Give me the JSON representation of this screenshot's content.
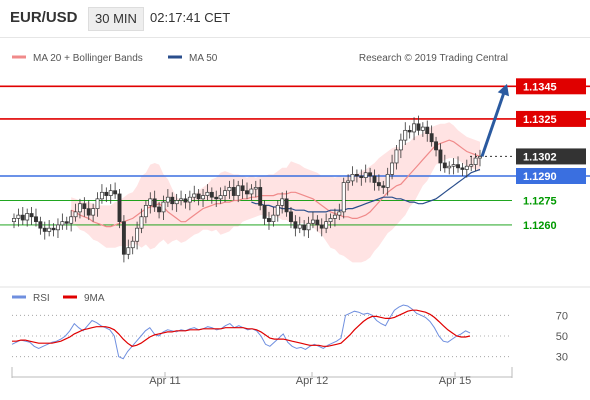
{
  "header": {
    "pair": "EUR/USD",
    "timeframe": "30 MIN",
    "time": "02:17:41 CET"
  },
  "legend": {
    "ma20": "MA 20 + Bollinger Bands",
    "ma50": "MA 50",
    "credit": "Research © 2019 Trading Central",
    "rsi": "RSI",
    "rsi_ma": "9MA"
  },
  "colors": {
    "resistance": "#e00000",
    "support_blue": "#3a6fe0",
    "support_green": "#009900",
    "current_bg": "#333333",
    "candle": "#333333",
    "band_fill": "#ffe3e3",
    "ma20": "#f08a8a",
    "ma50": "#2a4e8c",
    "rsi": "#6f8fdf",
    "rsi_ma": "#e00000",
    "arrow": "#2a5aa0"
  },
  "chart_data": [
    {
      "type": "candlestick",
      "series_names": [
        "MA 20 + Bollinger Bands",
        "MA 50"
      ],
      "x_ticks": [
        "Apr 11",
        "Apr 12",
        "Apr 15"
      ],
      "ylim": [
        1.1225,
        1.1355
      ],
      "levels": [
        {
          "value": "1.1345",
          "kind": "resistance"
        },
        {
          "value": "1.1325",
          "kind": "resistance"
        },
        {
          "value": "1.1302",
          "kind": "current"
        },
        {
          "value": "1.1290",
          "kind": "pivot"
        },
        {
          "value": "1.1275",
          "kind": "support"
        },
        {
          "value": "1.1260",
          "kind": "support"
        }
      ],
      "closes": [
        1.1264,
        1.1266,
        1.1263,
        1.1267,
        1.1265,
        1.1262,
        1.1258,
        1.1256,
        1.1258,
        1.1257,
        1.126,
        1.1262,
        1.1261,
        1.1265,
        1.1268,
        1.1273,
        1.127,
        1.1266,
        1.127,
        1.1276,
        1.128,
        1.1278,
        1.1281,
        1.1279,
        1.1262,
        1.1242,
        1.1246,
        1.125,
        1.1258,
        1.1265,
        1.1272,
        1.1276,
        1.1271,
        1.1268,
        1.1274,
        1.1277,
        1.1273,
        1.1275,
        1.1276,
        1.1274,
        1.1277,
        1.1279,
        1.1276,
        1.1278,
        1.128,
        1.1277,
        1.1276,
        1.1278,
        1.1281,
        1.1283,
        1.1278,
        1.1284,
        1.1281,
        1.1279,
        1.1282,
        1.1283,
        1.1272,
        1.1264,
        1.1262,
        1.1266,
        1.1272,
        1.1276,
        1.1268,
        1.1262,
        1.1258,
        1.126,
        1.1257,
        1.1261,
        1.1263,
        1.126,
        1.1258,
        1.1262,
        1.1264,
        1.1266,
        1.1268,
        1.1286,
        1.1287,
        1.1291,
        1.129,
        1.1289,
        1.1292,
        1.129,
        1.1286,
        1.1284,
        1.1283,
        1.1291,
        1.1298,
        1.1306,
        1.1312,
        1.1318,
        1.1317,
        1.1322,
        1.1318,
        1.132,
        1.1316,
        1.1311,
        1.1306,
        1.1298,
        1.1295,
        1.1296,
        1.1297,
        1.1295,
        1.1294,
        1.1296,
        1.1297,
        1.1301,
        1.1302
      ],
      "ma20": [
        1.1269,
        1.1268,
        1.1266,
        1.1265,
        1.1264,
        1.1262,
        1.1261,
        1.126,
        1.1259,
        1.1259,
        1.126,
        1.1261,
        1.1262,
        1.1263,
        1.1264,
        1.1266,
        1.1268,
        1.127,
        1.1271,
        1.1272,
        1.1273,
        1.1271,
        1.1268,
        1.1266,
        1.1264,
        1.1262,
        1.1262,
        1.1264,
        1.1266,
        1.1268,
        1.127,
        1.1271,
        1.1272,
        1.1273,
        1.1273,
        1.1274,
        1.1274,
        1.1275,
        1.1275,
        1.1276,
        1.1276,
        1.1277,
        1.1277,
        1.1278,
        1.1278,
        1.1278,
        1.1278,
        1.1279,
        1.1279,
        1.1279,
        1.128,
        1.128,
        1.1279,
        1.1278,
        1.1277,
        1.1276,
        1.1274,
        1.1272,
        1.127,
        1.1268,
        1.1267,
        1.1266,
        1.1265,
        1.1265,
        1.1264,
        1.1264,
        1.1265,
        1.1266,
        1.1268,
        1.1271,
        1.1274,
        1.1277,
        1.128,
        1.1282,
        1.1284,
        1.1285,
        1.1288,
        1.1291,
        1.1294,
        1.1297,
        1.13,
        1.1303,
        1.1306,
        1.1309,
        1.131,
        1.1311,
        1.1312,
        1.1311,
        1.1309,
        1.1307,
        1.1305,
        1.1304,
        1.1303,
        1.1302
      ],
      "ma50": [
        1.1274,
        1.1273,
        1.1273,
        1.1272,
        1.1272,
        1.1271,
        1.1271,
        1.127,
        1.127,
        1.127,
        1.1269,
        1.1269,
        1.1269,
        1.1268,
        1.1268,
        1.1268,
        1.1268,
        1.1268,
        1.1269,
        1.1269,
        1.1269,
        1.1269,
        1.127,
        1.127,
        1.1271,
        1.1272,
        1.1273,
        1.1274,
        1.1275,
        1.1276,
        1.1277,
        1.1277,
        1.1277,
        1.1276,
        1.1276,
        1.1275,
        1.1274,
        1.1274,
        1.1273,
        1.1273,
        1.1274,
        1.1275,
        1.1276,
        1.1278,
        1.128,
        1.1282,
        1.1284,
        1.1286,
        1.1288,
        1.129,
        1.1292,
        1.1293,
        1.1294
      ],
      "band_width": [
        0.0008,
        0.0009,
        0.001,
        0.0011,
        0.0012,
        0.0013,
        0.0014,
        0.0015,
        0.0016,
        0.0018,
        0.0022,
        0.0026,
        0.0024,
        0.002,
        0.0016,
        0.0013,
        0.0012,
        0.0012,
        0.0013,
        0.0014,
        0.0016,
        0.0019,
        0.0018,
        0.0016,
        0.0014,
        0.0013,
        0.0012,
        0.0012,
        0.0013,
        0.0014,
        0.0016,
        0.0019,
        0.0018,
        0.0017,
        0.0017,
        0.0018,
        0.002,
        0.0022,
        0.0024,
        0.0026,
        0.0027,
        0.0028,
        0.0028,
        0.0027,
        0.0026,
        0.0025,
        0.0024,
        0.0022,
        0.002,
        0.0018,
        0.0016,
        0.0014,
        0.0012,
        0.0011,
        0.001,
        0.0009,
        0.0009,
        0.0009,
        0.0009
      ]
    },
    {
      "type": "line",
      "series_names": [
        "RSI",
        "9MA"
      ],
      "ylim": [
        20,
        80
      ],
      "y_ticks": [
        "70",
        "50",
        "30"
      ],
      "rsi": [
        42,
        44,
        46,
        45,
        44,
        40,
        38,
        40,
        42,
        44,
        45,
        47,
        50,
        55,
        62,
        58,
        55,
        60,
        65,
        63,
        60,
        58,
        56,
        50,
        30,
        28,
        35,
        40,
        45,
        50,
        55,
        58,
        52,
        50,
        54,
        56,
        55,
        54,
        56,
        55,
        57,
        58,
        56,
        57,
        59,
        58,
        56,
        57,
        60,
        62,
        58,
        60,
        58,
        56,
        57,
        55,
        50,
        42,
        40,
        44,
        48,
        52,
        44,
        40,
        38,
        39,
        37,
        40,
        42,
        40,
        38,
        41,
        43,
        45,
        48,
        70,
        72,
        74,
        73,
        71,
        72,
        70,
        65,
        62,
        60,
        68,
        75,
        78,
        80,
        79,
        76,
        72,
        70,
        68,
        64,
        58,
        50,
        45,
        44,
        47,
        50,
        52,
        55,
        53
      ],
      "rsi_ma": [
        45,
        45,
        46,
        46,
        45,
        44,
        43,
        43,
        43,
        43,
        44,
        45,
        47,
        49,
        52,
        54,
        56,
        57,
        58,
        59,
        59,
        59,
        58,
        56,
        52,
        47,
        43,
        40,
        41,
        43,
        46,
        49,
        51,
        52,
        53,
        54,
        54,
        55,
        55,
        55,
        56,
        56,
        56,
        57,
        57,
        57,
        57,
        57,
        58,
        58,
        58,
        58,
        58,
        57,
        57,
        56,
        54,
        51,
        48,
        47,
        47,
        47,
        46,
        45,
        44,
        43,
        42,
        41,
        41,
        41,
        40,
        40,
        41,
        42,
        43,
        47,
        51,
        56,
        60,
        64,
        67,
        69,
        69,
        68,
        67,
        67,
        68,
        70,
        72,
        74,
        75,
        75,
        74,
        73,
        71,
        68,
        64,
        60,
        56,
        53,
        50,
        49,
        49,
        50
      ]
    }
  ]
}
